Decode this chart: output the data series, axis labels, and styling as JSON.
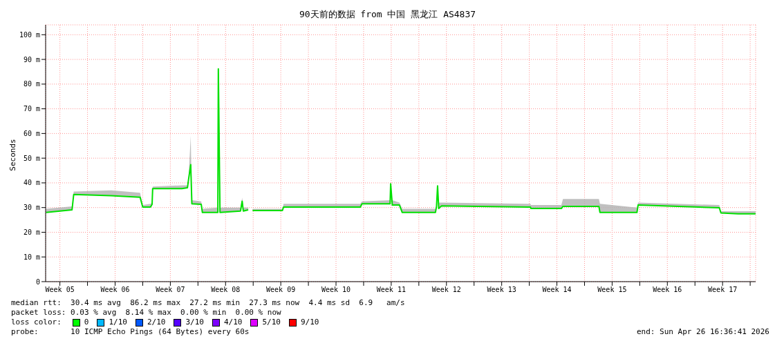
{
  "chart_data": {
    "type": "line",
    "title": "90天前的数据 from 中国 黑龙江 AS4837",
    "ylabel": "Seconds",
    "x": [
      "2026-01-26T18:00",
      "2026-01-30T01:00",
      "2026-01-30T06:00",
      "2026-02-04T00:00",
      "2026-02-07T16:00",
      "2026-02-08T00:00",
      "2026-02-08T23:30",
      "2026-02-09T04:30",
      "2026-02-09T06:15",
      "2026-02-12T23:15",
      "2026-02-13T16:00",
      "2026-02-13T19:30",
      "2026-02-14T02:00",
      "2026-02-14T05:30",
      "2026-02-15T10:00",
      "2026-02-15T13:30",
      "2026-02-17T12:30",
      "2026-02-17T14:00",
      "2026-02-17T19:00",
      "2026-02-20T09:30",
      "2026-02-20T14:30",
      "2026-02-20T18:00",
      "2026-02-21T09:00",
      "2026-02-21T15:30",
      "2026-02-21T22:15",
      "2026-02-25T17:00",
      "2026-02-25T20:30",
      "2026-03-07T14:00",
      "2026-03-07T19:00",
      "2026-03-11T08:30",
      "2026-03-11T10:15",
      "2026-03-11T15:15",
      "2026-03-12T13:00",
      "2026-03-12T21:30",
      "2026-03-17T02:30",
      "2026-03-17T05:45",
      "2026-03-17T09:00",
      "2026-03-17T12:30",
      "2026-03-17T21:00",
      "2026-03-29T03:30",
      "2026-03-29T05:00",
      "2026-04-02T01:30",
      "2026-04-02T06:30",
      "2026-04-06T19:45",
      "2026-04-06T23:00",
      "2026-04-11T15:30",
      "2026-04-11T19:00",
      "2026-04-22T02:00",
      "2026-04-22T07:00",
      "2026-04-24T11:00",
      "2026-04-26T16:30"
    ],
    "series": [
      {
        "color": "#00e000",
        "values": [
          28.0,
          29.1,
          35.3,
          34.8,
          34.2,
          30.2,
          30.2,
          31.3,
          37.7,
          37.7,
          38.0,
          41.5,
          47.4,
          31.5,
          31.3,
          28.0,
          28.0,
          86.2,
          28.0,
          28.6,
          32.6,
          28.6,
          29.1,
          null,
          28.8,
          28.8,
          30.2,
          30.2,
          31.5,
          31.5,
          39.6,
          31.0,
          31.0,
          28.0,
          28.0,
          30.5,
          38.8,
          29.6,
          30.7,
          30.2,
          29.6,
          29.6,
          30.5,
          30.5,
          28.0,
          28.0,
          31.0,
          29.9,
          27.8,
          27.5,
          27.5
        ],
        "lower": [
          28.0,
          29.1,
          35.3,
          34.8,
          34.2,
          30.2,
          30.2,
          31.3,
          37.7,
          37.7,
          38.0,
          41.5,
          47.4,
          31.5,
          31.3,
          28.0,
          28.0,
          86.2,
          28.0,
          28.6,
          32.6,
          28.6,
          29.1,
          null,
          28.8,
          28.8,
          30.2,
          30.2,
          31.5,
          31.5,
          39.6,
          31.0,
          31.0,
          28.0,
          28.0,
          30.5,
          38.8,
          29.6,
          30.7,
          30.2,
          29.6,
          29.6,
          30.5,
          30.5,
          28.0,
          28.0,
          31.0,
          29.9,
          27.8,
          27.5,
          27.5
        ],
        "upper": [
          29.5,
          30.5,
          36.5,
          37,
          36,
          31,
          31.5,
          32,
          38.5,
          39,
          39,
          42,
          59,
          33,
          32.5,
          29.5,
          30,
          86.2,
          30,
          30,
          34,
          30,
          30,
          null,
          29.5,
          29.5,
          31.5,
          31.5,
          32.5,
          33,
          40,
          33,
          32,
          29.5,
          29.5,
          31,
          39,
          32,
          32,
          31.5,
          31,
          31,
          33.5,
          33.5,
          31.5,
          30,
          32,
          31,
          28.5,
          28.5,
          28.5
        ]
      }
    ],
    "xlim": [
      "2026-01-26T16:36",
      "2026-04-26T16:36"
    ],
    "xticks": [
      {
        "value": "2026-01-28T12:00",
        "label": "Week 05"
      },
      {
        "value": "2026-02-01",
        "label": null
      },
      {
        "value": "2026-02-04T12:00",
        "label": "Week 06"
      },
      {
        "value": "2026-02-08",
        "label": null
      },
      {
        "value": "2026-02-11T12:00",
        "label": "Week 07"
      },
      {
        "value": "2026-02-15",
        "label": null
      },
      {
        "value": "2026-02-18T12:00",
        "label": "Week 08"
      },
      {
        "value": "2026-02-22",
        "label": null
      },
      {
        "value": "2026-02-25T12:00",
        "label": "Week 09"
      },
      {
        "value": "2026-03-01",
        "label": null
      },
      {
        "value": "2026-03-04T12:00",
        "label": "Week 10"
      },
      {
        "value": "2026-03-08",
        "label": null
      },
      {
        "value": "2026-03-11T12:00",
        "label": "Week 11"
      },
      {
        "value": "2026-03-15",
        "label": null
      },
      {
        "value": "2026-03-18T12:00",
        "label": "Week 12"
      },
      {
        "value": "2026-03-22",
        "label": null
      },
      {
        "value": "2026-03-25T12:00",
        "label": "Week 13"
      },
      {
        "value": "2026-03-29",
        "label": null
      },
      {
        "value": "2026-04-01T12:00",
        "label": "Week 14"
      },
      {
        "value": "2026-04-05",
        "label": null
      },
      {
        "value": "2026-04-08T12:00",
        "label": "Week 15"
      },
      {
        "value": "2026-04-12",
        "label": null
      },
      {
        "value": "2026-04-15T12:00",
        "label": "Week 16"
      },
      {
        "value": "2026-04-19",
        "label": null
      },
      {
        "value": "2026-04-22T12:00",
        "label": "Week 17"
      },
      {
        "value": "2026-04-26",
        "label": null
      }
    ],
    "ylim": [
      0,
      104
    ],
    "yticks": [
      0,
      {
        "value": 10,
        "label": "10 m"
      },
      {
        "value": 20,
        "label": "20 m"
      },
      {
        "value": 30,
        "label": "30 m"
      },
      {
        "value": 40,
        "label": "40 m"
      },
      {
        "value": 50,
        "label": "50 m"
      },
      {
        "value": 60,
        "label": "60 m"
      },
      {
        "value": 70,
        "label": "70 m"
      },
      {
        "value": 80,
        "label": "80 m"
      },
      {
        "value": 90,
        "label": "90 m"
      },
      {
        "value": 100,
        "label": "100 m"
      }
    ],
    "grid": true,
    "legend": false,
    "annotations": [
      "median rtt:  30.4 ms avg  86.2 ms max  27.2 ms min  27.3 ms now  4.4 ms sd  6.9   am/s",
      "packet loss: 0.03 % avg  8.14 % max  0.00 % min  0.00 % now",
      "loss color:",
      "0",
      "1/10",
      "2/10",
      "3/10",
      "4/10",
      "5/10",
      "9/10",
      "probe:       10 ICMP Echo Pings (64 Bytes) every 60s",
      "end: Sun Apr 26 16:36:41 2026"
    ]
  }
}
